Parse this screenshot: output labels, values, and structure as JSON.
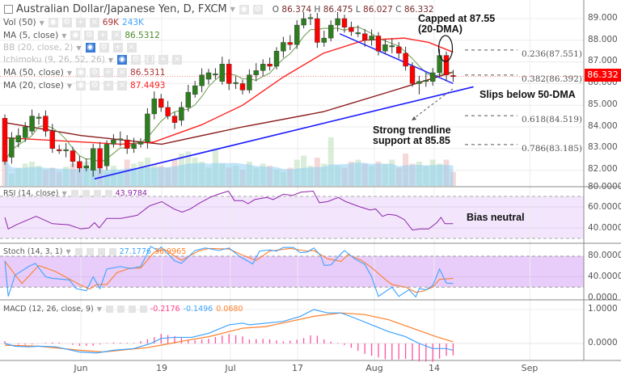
{
  "header": {
    "title": "Australian Dollar/Japanese Yen, D, FXCM",
    "ohlc": {
      "o_label": "O",
      "o": "86.374",
      "h_label": "H",
      "h": "86.475",
      "l_label": "L",
      "l": "86.027",
      "c_label": "C",
      "c": "86.332"
    }
  },
  "legend": {
    "vol": {
      "label": "Vol (50)",
      "v1": "69K",
      "v2": "243K"
    },
    "ma5": {
      "label": "MA (5, close)",
      "value": "86.5312"
    },
    "bb": {
      "label": "BB (20, close, 2)"
    },
    "ichimoku": {
      "label": "Ichimoku (9, 26, 52, 26)"
    },
    "ma50": {
      "label": "MA (50, close)",
      "value": "86.5311"
    },
    "ma20": {
      "label": "MA (20, close)",
      "value": "87.4493"
    },
    "rsi": {
      "label": "RSI (14, close)",
      "value": "43.9784"
    },
    "stoch": {
      "label": "Stoch (14, 3, 1)",
      "k": "27.1776",
      "d": "36.9965"
    },
    "macd": {
      "label": "MACD (12, 26, close, 9)",
      "hist": "-0.2176",
      "macd": "-0.1496",
      "signal": "0.0680"
    }
  },
  "annotations": {
    "capped": "Capped at 87.55\n(20-DMA)",
    "slips": "Slips below 50-DMA",
    "support": "Strong trendline\nsupport at 85.85",
    "bias": "Bias neutral"
  },
  "fib_levels": [
    {
      "label": "0.236(87.551)",
      "price": 87.551
    },
    {
      "label": "0.382(86.392)",
      "price": 86.392
    },
    {
      "label": "0.618(84.519)",
      "price": 84.519
    },
    {
      "label": "0.786(83.185)",
      "price": 83.185
    }
  ],
  "price_axis": [
    "89.000",
    "88.000",
    "87.000",
    "86.000",
    "85.000",
    "84.000",
    "83.000",
    "82.000"
  ],
  "current_price": "86.332",
  "rsi_axis": [
    "80.0000",
    "60.0000",
    "40.0000"
  ],
  "stoch_axis": [
    "80.0000",
    "40.0000",
    "0.0000"
  ],
  "macd_axis": [
    "1.0000",
    "0.0000"
  ],
  "x_axis": [
    {
      "label": "Jun",
      "bar": 11.2
    },
    {
      "label": "19",
      "bar": 23.1
    },
    {
      "label": "Jul",
      "bar": 33.2
    },
    {
      "label": "17",
      "bar": 43.1
    },
    {
      "label": "Aug",
      "bar": 54.4
    },
    {
      "label": "14",
      "bar": 63.2
    },
    {
      "label": "Sep",
      "bar": 77.3
    }
  ],
  "colors": {
    "up": "#2e7d1f",
    "down": "#ff0000",
    "ma5": "#6a9a4a",
    "ma20": "#ff2020",
    "ma50": "#8b1a1a",
    "trend": "#1a1aff",
    "rsi": "#8e24aa",
    "k": "#3ea3ff",
    "d": "#ff7f2a",
    "hist": "#ff4fa0"
  },
  "chart_data": {
    "type": "candlestick",
    "title": "Australian Dollar/Japanese Yen, D, FXCM",
    "candles_oc": [
      [
        84.4,
        82.4
      ],
      [
        82.6,
        83.5
      ],
      [
        83.3,
        83.6
      ],
      [
        83.5,
        84.0
      ],
      [
        83.8,
        84.5
      ],
      [
        84.4,
        84.45
      ],
      [
        84.5,
        83.8
      ],
      [
        83.8,
        83.0
      ],
      [
        82.95,
        82.9
      ],
      [
        82.9,
        82.95
      ],
      [
        82.9,
        82.4
      ],
      [
        82.4,
        82.1
      ],
      [
        82.1,
        82.2
      ],
      [
        82.0,
        83.0
      ],
      [
        83.0,
        82.1
      ],
      [
        82.2,
        83.2
      ],
      [
        83.2,
        83.4
      ],
      [
        83.4,
        83.45
      ],
      [
        83.4,
        83.0
      ],
      [
        83.0,
        83.2
      ],
      [
        83.2,
        83.3
      ],
      [
        83.3,
        84.6
      ],
      [
        84.6,
        85.3
      ],
      [
        85.3,
        84.9
      ],
      [
        84.9,
        84.5
      ],
      [
        84.5,
        84.2
      ],
      [
        84.3,
        84.9
      ],
      [
        84.9,
        85.6
      ],
      [
        85.5,
        85.9
      ],
      [
        85.9,
        86.4
      ],
      [
        86.2,
        86.5
      ],
      [
        86.4,
        86.45
      ],
      [
        86.1,
        86.9
      ],
      [
        86.9,
        86.0
      ],
      [
        86.0,
        86.05
      ],
      [
        86.0,
        85.7
      ],
      [
        85.7,
        86.4
      ],
      [
        86.4,
        86.6
      ],
      [
        86.6,
        86.9
      ],
      [
        86.9,
        86.8
      ],
      [
        86.8,
        87.5
      ],
      [
        87.5,
        87.9
      ],
      [
        87.9,
        87.8
      ],
      [
        87.8,
        88.7
      ],
      [
        88.7,
        89.0
      ],
      [
        89.0,
        89.05
      ],
      [
        89.0,
        87.9
      ],
      [
        87.9,
        88.1
      ],
      [
        88.1,
        88.7
      ],
      [
        88.7,
        89.0
      ],
      [
        89.0,
        88.6
      ],
      [
        88.6,
        88.4
      ],
      [
        88.3,
        88.35
      ],
      [
        88.3,
        88.0
      ],
      [
        88.0,
        88.2
      ],
      [
        88.2,
        87.5
      ],
      [
        87.5,
        87.8
      ],
      [
        87.7,
        87.75
      ],
      [
        87.7,
        87.4
      ],
      [
        87.4,
        86.8
      ],
      [
        86.8,
        86.0
      ],
      [
        86.0,
        86.1
      ],
      [
        86.1,
        86.15
      ],
      [
        86.1,
        86.5
      ],
      [
        86.5,
        87.3
      ],
      [
        87.3,
        86.4
      ],
      [
        86.374,
        86.332
      ]
    ],
    "volume_k": [
      150,
      60,
      90,
      110,
      120,
      100,
      80,
      90,
      70,
      95,
      110,
      100,
      120,
      80,
      90,
      70,
      100,
      80,
      130,
      110,
      120,
      140,
      110,
      100,
      90,
      130,
      160,
      170,
      140,
      120,
      90,
      180,
      110,
      90,
      100,
      80,
      120,
      90,
      110,
      100,
      80,
      70,
      90,
      130,
      150,
      100,
      140,
      110,
      240,
      100,
      90,
      120,
      130,
      110,
      100,
      120,
      110,
      130,
      90,
      160,
      110,
      120,
      100,
      130,
      110,
      130,
      69
    ],
    "ma20": [
      [
        0,
        83.5
      ],
      [
        17.1,
        83.2
      ],
      [
        21.9,
        83.3
      ],
      [
        29,
        84.1
      ],
      [
        35,
        85.0
      ],
      [
        41,
        86.3
      ],
      [
        46.9,
        87.4
      ],
      [
        52.9,
        88.0
      ],
      [
        58.8,
        88.1
      ],
      [
        62.4,
        87.9
      ],
      [
        66,
        87.45
      ]
    ],
    "ma50": [
      [
        0,
        84.2
      ],
      [
        11.2,
        83.6
      ],
      [
        23.1,
        83.2
      ],
      [
        35,
        84.0
      ],
      [
        46.9,
        84.7
      ],
      [
        56.4,
        85.6
      ],
      [
        66,
        86.53
      ]
    ],
    "trendline_support": [
      [
        13.2,
        81.6
      ],
      [
        69,
        85.85
      ]
    ],
    "trendline_resistance": [
      [
        49.3,
        88.3
      ],
      [
        66,
        86.0
      ]
    ],
    "rsi": [
      [
        0,
        50
      ],
      [
        0.5,
        39
      ],
      [
        1.7,
        43
      ],
      [
        4.6,
        51
      ],
      [
        7,
        44
      ],
      [
        9.4,
        43
      ],
      [
        11.2,
        39
      ],
      [
        12.4,
        40
      ],
      [
        13.2,
        45
      ],
      [
        13.9,
        40
      ],
      [
        15,
        49
      ],
      [
        17.1,
        49
      ],
      [
        19.5,
        52
      ],
      [
        21.3,
        61
      ],
      [
        23.1,
        65
      ],
      [
        24.9,
        58
      ],
      [
        26.1,
        55
      ],
      [
        27.3,
        58
      ],
      [
        28.5,
        63
      ],
      [
        30.2,
        69
      ],
      [
        31.4,
        72
      ],
      [
        32.9,
        75
      ],
      [
        33.8,
        66
      ],
      [
        35,
        66
      ],
      [
        35.8,
        63
      ],
      [
        36.8,
        67
      ],
      [
        38.6,
        69
      ],
      [
        39.5,
        67
      ],
      [
        41,
        72
      ],
      [
        42.4,
        71
      ],
      [
        43.6,
        74
      ],
      [
        45.4,
        75
      ],
      [
        46.3,
        64
      ],
      [
        47.5,
        65
      ],
      [
        49.1,
        69
      ],
      [
        50.2,
        65
      ],
      [
        52.3,
        60
      ],
      [
        53.8,
        57
      ],
      [
        54.6,
        58
      ],
      [
        55.6,
        51
      ],
      [
        56.4,
        53
      ],
      [
        57.6,
        52
      ],
      [
        58.8,
        48
      ],
      [
        60,
        38
      ],
      [
        61.2,
        39
      ],
      [
        62.4,
        39
      ],
      [
        63.6,
        45
      ],
      [
        64.2,
        50
      ],
      [
        64.8,
        44
      ],
      [
        66,
        44
      ]
    ],
    "stoch_k": [
      [
        0,
        71
      ],
      [
        0.5,
        2
      ],
      [
        1.5,
        43
      ],
      [
        3.5,
        60
      ],
      [
        4.5,
        66
      ],
      [
        6,
        40
      ],
      [
        7,
        37
      ],
      [
        9.5,
        34
      ],
      [
        10.5,
        17
      ],
      [
        12,
        13
      ],
      [
        13,
        40
      ],
      [
        14,
        17
      ],
      [
        15,
        55
      ],
      [
        17,
        60
      ],
      [
        18.5,
        56
      ],
      [
        20,
        60
      ],
      [
        21.5,
        99
      ],
      [
        22.5,
        91
      ],
      [
        23,
        98
      ],
      [
        25,
        71
      ],
      [
        26,
        66
      ],
      [
        28,
        91
      ],
      [
        29.5,
        96
      ],
      [
        31.5,
        91
      ],
      [
        33,
        96
      ],
      [
        34.5,
        80
      ],
      [
        36.5,
        65
      ],
      [
        37.5,
        90
      ],
      [
        39,
        92
      ],
      [
        40,
        90
      ],
      [
        41,
        97
      ],
      [
        42.5,
        97
      ],
      [
        43.5,
        87
      ],
      [
        44.5,
        88
      ],
      [
        45.5,
        96
      ],
      [
        46.5,
        81
      ],
      [
        47,
        62
      ],
      [
        48,
        63
      ],
      [
        49.5,
        85
      ],
      [
        50,
        91
      ],
      [
        51.5,
        75
      ],
      [
        53,
        64
      ],
      [
        54,
        40
      ],
      [
        55,
        2
      ],
      [
        57,
        20
      ],
      [
        58,
        2
      ],
      [
        59.5,
        15
      ],
      [
        60.5,
        1
      ],
      [
        61,
        17
      ],
      [
        62,
        15
      ],
      [
        63,
        23
      ],
      [
        64,
        55
      ],
      [
        65,
        28
      ],
      [
        66,
        27
      ]
    ],
    "stoch_d": [
      [
        0,
        70
      ],
      [
        2.5,
        27
      ],
      [
        5,
        62
      ],
      [
        7.5,
        50
      ],
      [
        11,
        25
      ],
      [
        12.5,
        16
      ],
      [
        13.5,
        25
      ],
      [
        15,
        25
      ],
      [
        16.5,
        48
      ],
      [
        18.5,
        57
      ],
      [
        20,
        57
      ],
      [
        22,
        88
      ],
      [
        23.5,
        93
      ],
      [
        26,
        72
      ],
      [
        28.5,
        90
      ],
      [
        30,
        95
      ],
      [
        33,
        94
      ],
      [
        35,
        82
      ],
      [
        37,
        72
      ],
      [
        39,
        90
      ],
      [
        42,
        95
      ],
      [
        44.5,
        90
      ],
      [
        45.5,
        91
      ],
      [
        47.5,
        75
      ],
      [
        49.5,
        70
      ],
      [
        50.5,
        83
      ],
      [
        52.5,
        72
      ],
      [
        54,
        58
      ],
      [
        56,
        35
      ],
      [
        57,
        25
      ],
      [
        59,
        20
      ],
      [
        60.5,
        10
      ],
      [
        61.5,
        12
      ],
      [
        63,
        20
      ],
      [
        64,
        35
      ],
      [
        66,
        37
      ]
    ],
    "macd": [
      [
        0,
        0
      ],
      [
        1.5,
        -0.08
      ],
      [
        3.5,
        -0.1
      ],
      [
        5,
        -0.08
      ],
      [
        7.5,
        -0.1
      ],
      [
        11,
        -0.25
      ],
      [
        13.5,
        -0.28
      ],
      [
        16,
        -0.2
      ],
      [
        19,
        -0.15
      ],
      [
        21.5,
        0
      ],
      [
        23,
        0.15
      ],
      [
        25,
        0.18
      ],
      [
        27.5,
        0.18
      ],
      [
        30,
        0.3
      ],
      [
        33,
        0.55
      ],
      [
        35,
        0.6
      ],
      [
        36,
        0.55
      ],
      [
        38.5,
        0.6
      ],
      [
        41,
        0.65
      ],
      [
        43.5,
        0.8
      ],
      [
        45.5,
        1.0
      ],
      [
        47.5,
        0.9
      ],
      [
        49.5,
        0.9
      ],
      [
        51.5,
        0.75
      ],
      [
        54,
        0.55
      ],
      [
        56.5,
        0.35
      ],
      [
        59,
        0.2
      ],
      [
        61,
        0
      ],
      [
        63,
        -0.15
      ],
      [
        65,
        -0.15
      ],
      [
        66,
        -0.2
      ]
    ],
    "signal": [
      [
        0,
        -0.05
      ],
      [
        5,
        -0.08
      ],
      [
        11,
        -0.2
      ],
      [
        14.5,
        -0.25
      ],
      [
        17,
        -0.2
      ],
      [
        21,
        -0.12
      ],
      [
        23,
        -0.05
      ],
      [
        27,
        0.1
      ],
      [
        30,
        0.2
      ],
      [
        33,
        0.35
      ],
      [
        35,
        0.45
      ],
      [
        38.5,
        0.5
      ],
      [
        42,
        0.65
      ],
      [
        45.5,
        0.8
      ],
      [
        49.5,
        0.9
      ],
      [
        53,
        0.85
      ],
      [
        56.5,
        0.7
      ],
      [
        60,
        0.45
      ],
      [
        63.5,
        0.2
      ],
      [
        66,
        0.05
      ]
    ],
    "ylim_price": [
      80.6,
      89.8
    ],
    "rsi_band": [
      30,
      70
    ],
    "stoch_band": [
      20,
      80
    ]
  }
}
